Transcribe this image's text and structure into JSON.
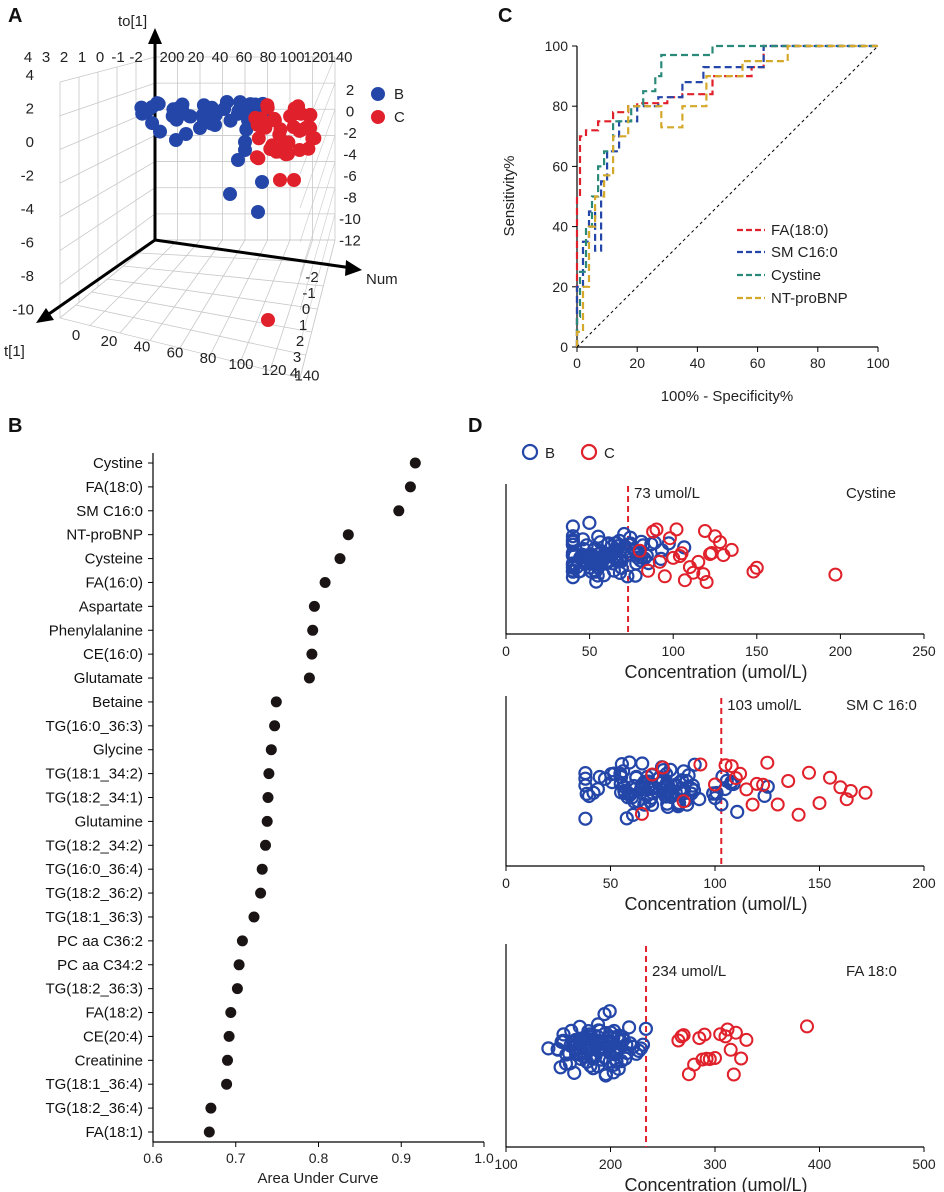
{
  "panels": {
    "A": "A",
    "B": "B",
    "C": "C",
    "D": "D"
  },
  "colors": {
    "B": "#2346a8",
    "C": "#e0202a",
    "FA": "#e0202a",
    "SM": "#2346a8",
    "Cystine": "#2a8a7a",
    "NTproBNP": "#d4a82a",
    "dot": "#1a1414",
    "grid": "#c8c8c8"
  },
  "chart_data": [
    {
      "panel": "A",
      "type": "scatter",
      "axes": {
        "to1": "to[1]",
        "t1": "t[1]",
        "num": "Num"
      },
      "legend": [
        "B",
        "C"
      ],
      "tick_labels": {
        "vertical": [
          "4",
          "2",
          "0",
          "-2",
          "-4",
          "-6",
          "-8",
          "-10"
        ],
        "depth_top": [
          "4",
          "3",
          "2",
          "1",
          "0",
          "-1",
          "-2"
        ],
        "num_top": [
          "200",
          "20",
          "40",
          "60",
          "80",
          "100",
          "120",
          "140"
        ],
        "num_bottom": [
          "0",
          "20",
          "40",
          "60",
          "80",
          "100",
          "120",
          "140"
        ],
        "right_side": [
          "2",
          "0",
          "-2",
          "-4",
          "-6",
          "-8",
          "-10",
          "-12"
        ],
        "right_depth": [
          "-2",
          "-1",
          "0",
          "1",
          "2",
          "3",
          "4"
        ]
      },
      "note": "3D OPLS-DA score plot; group B (blue) clustered left, group C (red) clustered right with one outlier."
    },
    {
      "panel": "C",
      "type": "line",
      "title": "",
      "xlabel": "100% - Specificity%",
      "ylabel": "Sensitivity%",
      "xlim": [
        0,
        100
      ],
      "ylim": [
        0,
        100
      ],
      "xticks": [
        "0",
        "20",
        "40",
        "60",
        "80",
        "100"
      ],
      "yticks": [
        "0",
        "20",
        "40",
        "60",
        "80",
        "100"
      ],
      "series": [
        {
          "name": "FA(18:0)",
          "color_key": "FA",
          "x": [
            0,
            0,
            1,
            1,
            3,
            3,
            7,
            7,
            12,
            12,
            17,
            17,
            20,
            20,
            30,
            30,
            35,
            35,
            45,
            45,
            58,
            58,
            62,
            62,
            100
          ],
          "y": [
            0,
            50,
            50,
            70,
            70,
            72,
            72,
            75,
            75,
            78,
            78,
            80,
            80,
            81,
            81,
            83,
            83,
            84,
            84,
            90,
            90,
            93,
            93,
            100,
            100
          ]
        },
        {
          "name": "SM C16:0",
          "color_key": "SM",
          "x": [
            0,
            0,
            2,
            2,
            4,
            4,
            6,
            6,
            8,
            8,
            10,
            10,
            14,
            14,
            20,
            20,
            27,
            27,
            35,
            35,
            42,
            42,
            62,
            62,
            100
          ],
          "y": [
            0,
            20,
            20,
            35,
            35,
            45,
            45,
            32,
            32,
            55,
            55,
            65,
            65,
            75,
            75,
            80,
            80,
            83,
            83,
            88,
            88,
            93,
            93,
            100,
            100
          ]
        },
        {
          "name": "Cystine",
          "color_key": "Cystine",
          "x": [
            0,
            0,
            1,
            1,
            3,
            3,
            5,
            5,
            7,
            7,
            9,
            9,
            12,
            12,
            18,
            18,
            22,
            22,
            26,
            26,
            28,
            28,
            34,
            34,
            45,
            45,
            100
          ],
          "y": [
            0,
            10,
            10,
            25,
            25,
            40,
            40,
            50,
            50,
            60,
            60,
            65,
            65,
            75,
            75,
            80,
            80,
            85,
            85,
            90,
            90,
            97,
            97,
            97,
            97,
            100,
            100
          ]
        },
        {
          "name": "NT-proBNP",
          "color_key": "NTproBNP",
          "x": [
            0,
            0,
            2,
            2,
            4,
            4,
            6,
            6,
            9,
            9,
            12,
            12,
            17,
            17,
            28,
            28,
            35,
            35,
            43,
            43,
            55,
            55,
            70,
            70,
            100
          ],
          "y": [
            0,
            5,
            5,
            20,
            20,
            40,
            40,
            50,
            50,
            57,
            57,
            70,
            70,
            80,
            80,
            73,
            73,
            80,
            80,
            90,
            90,
            95,
            95,
            100,
            100
          ]
        },
        {
          "name": "",
          "color_key": "dot",
          "reference": true,
          "x": [
            0,
            100
          ],
          "y": [
            0,
            100
          ]
        }
      ]
    },
    {
      "panel": "B",
      "type": "scatter",
      "xlabel": "Area Under Curve",
      "xlim": [
        0.6,
        1.0
      ],
      "xticks": [
        "0.6",
        "0.7",
        "0.8",
        "0.9",
        "1.0"
      ],
      "categories": [
        "Cystine",
        "FA(18:0)",
        "SM C16:0",
        "NT-proBNP",
        "Cysteine",
        "FA(16:0)",
        "Aspartate",
        "Phenylalanine",
        "CE(16:0)",
        "Glutamate",
        "Betaine",
        "TG(16:0_36:3)",
        "Glycine",
        "TG(18:1_34:2)",
        "TG(18:2_34:1)",
        "Glutamine",
        "TG(18:2_34:2)",
        "TG(16:0_36:4)",
        "TG(18:2_36:2)",
        "TG(18:1_36:3)",
        "PC aa C36:2",
        "PC aa C34:2",
        "TG(18:2_36:3)",
        "FA(18:2)",
        "CE(20:4)",
        "Creatinine",
        "TG(18:1_36:4)",
        "TG(18:2_36:4)",
        "FA(18:1)"
      ],
      "values": [
        0.917,
        0.911,
        0.897,
        0.836,
        0.826,
        0.808,
        0.795,
        0.793,
        0.792,
        0.789,
        0.749,
        0.747,
        0.743,
        0.74,
        0.739,
        0.738,
        0.736,
        0.732,
        0.73,
        0.722,
        0.708,
        0.704,
        0.702,
        0.694,
        0.692,
        0.69,
        0.689,
        0.67,
        0.668
      ]
    },
    {
      "panel": "D",
      "type": "scatter",
      "legend": [
        "B",
        "C"
      ],
      "subplots": [
        {
          "name": "Cystine",
          "threshold": 73,
          "threshold_label": "73 umol/L",
          "xlabel": "Concentration (umol/L)",
          "xlim": [
            0,
            250
          ],
          "xticks": [
            "0",
            "50",
            "100",
            "150",
            "200",
            "250"
          ],
          "C_values": [
            85,
            88,
            92,
            95,
            98,
            100,
            102,
            105,
            107,
            110,
            112,
            115,
            118,
            120,
            122,
            125,
            128,
            130,
            135,
            148,
            150,
            197,
            80,
            90,
            104,
            119,
            123
          ],
          "B_count": 115,
          "B_range": [
            40,
            133
          ],
          "B_center": 60
        },
        {
          "name": "SM C 16:0",
          "threshold": 103,
          "threshold_label": "103 umol/L",
          "xlabel": "Concentration (umol/L)",
          "xlim": [
            0,
            200
          ],
          "xticks": [
            "0",
            "50",
            "100",
            "150",
            "200"
          ],
          "C_values": [
            65,
            70,
            75,
            85,
            100,
            105,
            108,
            110,
            112,
            115,
            118,
            120,
            125,
            130,
            135,
            140,
            150,
            155,
            160,
            163,
            165,
            172,
            93,
            123,
            145
          ],
          "B_count": 120,
          "B_range": [
            38,
            150
          ],
          "B_center": 75
        },
        {
          "name": "FA 18:0",
          "threshold": 234,
          "threshold_label": "234 umol/L",
          "xlabel": "Concentration (umol/L)",
          "xlim": [
            100,
            500
          ],
          "xticks": [
            "100",
            "200",
            "300",
            "400",
            "500"
          ],
          "C_values": [
            265,
            270,
            275,
            280,
            285,
            288,
            290,
            295,
            300,
            305,
            310,
            315,
            318,
            320,
            325,
            330,
            388,
            268,
            292,
            312
          ],
          "B_count": 120,
          "B_range": [
            140,
            250
          ],
          "B_center": 185
        }
      ]
    }
  ]
}
